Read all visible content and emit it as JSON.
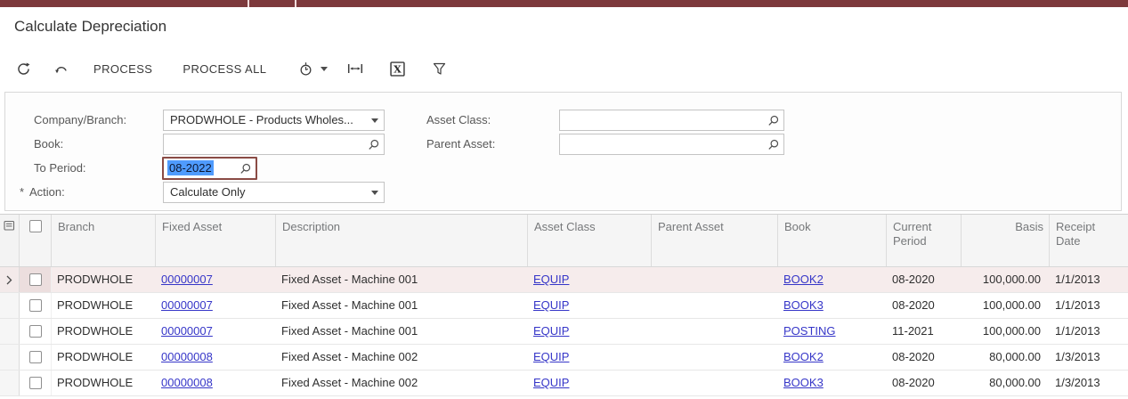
{
  "page": {
    "title": "Calculate Depreciation"
  },
  "colors": {
    "accent_maroon": "#7d393c",
    "focus_border_maroon": "#8a4b45",
    "link_blue": "#3636c8",
    "text_selection_blue": "#4f9bfd",
    "selected_row_pink": "#f6ecec"
  },
  "icons": {
    "refresh": "circular-arrow",
    "undo": "curved-arrow-left",
    "schedule": "clock",
    "dropdown_caret": "▾",
    "fit_width": "|↔|",
    "export_excel": "boxed-X",
    "filter": "funnel",
    "lookup": "magnifier",
    "row_settings": "list-box",
    "selected_row_pointer": "›"
  },
  "toolbar": {
    "process_label": "PROCESS",
    "process_all_label": "PROCESS ALL"
  },
  "filters": {
    "company_branch": {
      "label": "Company/Branch:",
      "value": "PRODWHOLE - Products Wholes..."
    },
    "book": {
      "label": "Book:",
      "value": "",
      "placeholder": ""
    },
    "to_period": {
      "label": "To Period:",
      "value": "08-2022",
      "selected": true
    },
    "action": {
      "label": "Action:",
      "required_marker": "*",
      "value": "Calculate Only"
    },
    "asset_class": {
      "label": "Asset Class:",
      "value": "",
      "placeholder": ""
    },
    "parent_asset": {
      "label": "Parent Asset:",
      "value": "",
      "placeholder": ""
    }
  },
  "grid": {
    "columns": [
      {
        "label": "Branch"
      },
      {
        "label": "Fixed Asset"
      },
      {
        "label": "Description"
      },
      {
        "label": "Asset Class"
      },
      {
        "label": "Parent Asset"
      },
      {
        "label": "Book"
      },
      {
        "label": "Current Period"
      },
      {
        "label": "Basis",
        "align": "right"
      },
      {
        "label": "Receipt Date"
      }
    ],
    "rows": [
      {
        "selected": true,
        "branch": "PRODWHOLE",
        "fixed_asset": "00000007",
        "description": "Fixed Asset - Machine 001",
        "asset_class": "EQUIP",
        "parent_asset": "",
        "book": "BOOK2",
        "current_period": "08-2020",
        "basis": "100,000.00",
        "receipt_date": "1/1/2013"
      },
      {
        "selected": false,
        "branch": "PRODWHOLE",
        "fixed_asset": "00000007",
        "description": "Fixed Asset - Machine 001",
        "asset_class": "EQUIP",
        "parent_asset": "",
        "book": "BOOK3",
        "current_period": "08-2020",
        "basis": "100,000.00",
        "receipt_date": "1/1/2013"
      },
      {
        "selected": false,
        "branch": "PRODWHOLE",
        "fixed_asset": "00000007",
        "description": "Fixed Asset - Machine 001",
        "asset_class": "EQUIP",
        "parent_asset": "",
        "book": "POSTING",
        "current_period": "11-2021",
        "basis": "100,000.00",
        "receipt_date": "1/1/2013"
      },
      {
        "selected": false,
        "branch": "PRODWHOLE",
        "fixed_asset": "00000008",
        "description": "Fixed Asset - Machine 002",
        "asset_class": "EQUIP",
        "parent_asset": "",
        "book": "BOOK2",
        "current_period": "08-2020",
        "basis": "80,000.00",
        "receipt_date": "1/3/2013"
      },
      {
        "selected": false,
        "branch": "PRODWHOLE",
        "fixed_asset": "00000008",
        "description": "Fixed Asset - Machine 002",
        "asset_class": "EQUIP",
        "parent_asset": "",
        "book": "BOOK3",
        "current_period": "08-2020",
        "basis": "80,000.00",
        "receipt_date": "1/3/2013"
      }
    ]
  }
}
